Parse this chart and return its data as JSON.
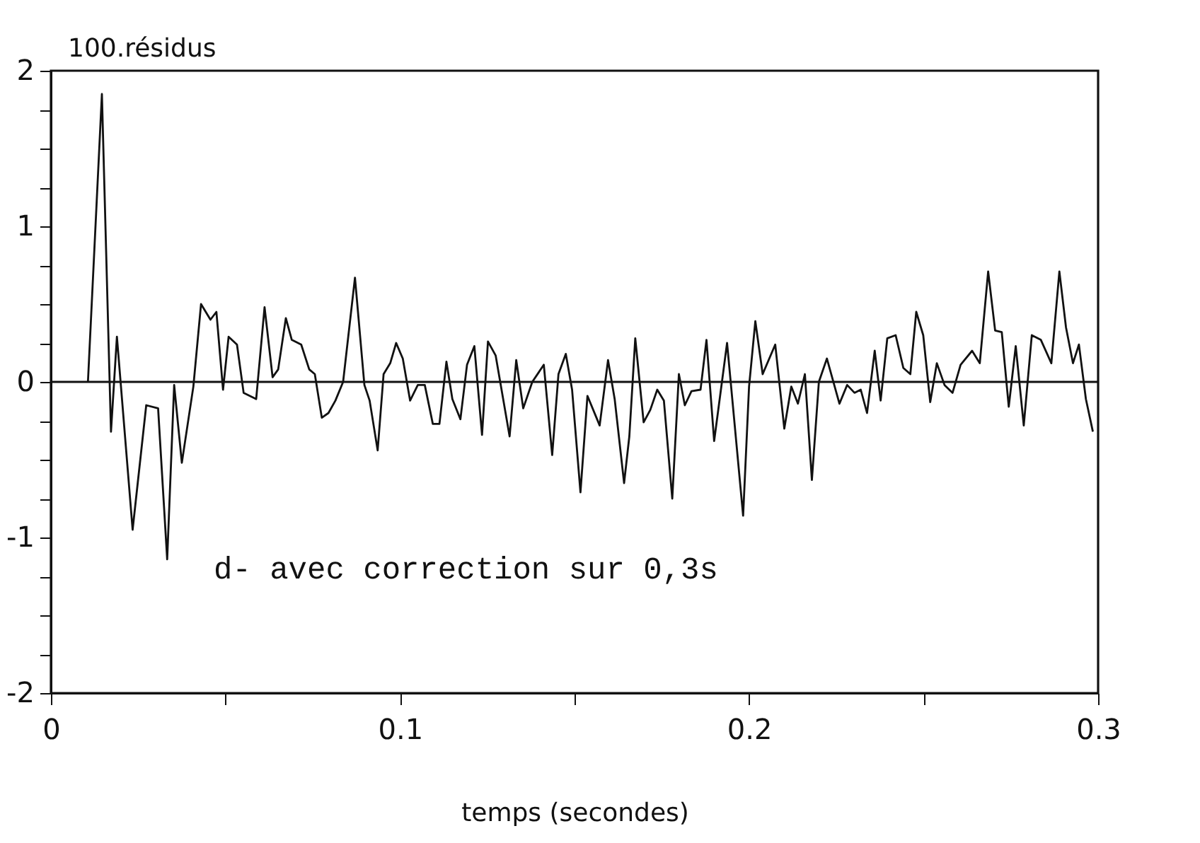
{
  "chart_data": {
    "type": "line",
    "ylabel": "100.résidus",
    "xlabel": "temps (secondes)",
    "annotations": [
      "d- avec correction sur 0,3s"
    ],
    "x": [
      0.0106,
      0.0146,
      0.0172,
      0.0189,
      0.0234,
      0.0273,
      0.0307,
      0.0333,
      0.0353,
      0.0375,
      0.0408,
      0.043,
      0.0457,
      0.0474,
      0.0493,
      0.0509,
      0.0533,
      0.0552,
      0.0588,
      0.0612,
      0.0635,
      0.0651,
      0.0673,
      0.069,
      0.0717,
      0.074,
      0.0756,
      0.0776,
      0.0795,
      0.0815,
      0.0837,
      0.0871,
      0.0898,
      0.0913,
      0.0936,
      0.0953,
      0.0972,
      0.0989,
      0.1008,
      0.1029,
      0.1051,
      0.1071,
      0.1094,
      0.1113,
      0.1133,
      0.115,
      0.1173,
      0.1192,
      0.1213,
      0.1235,
      0.1252,
      0.1274,
      0.1314,
      0.1333,
      0.1353,
      0.1379,
      0.1412,
      0.1436,
      0.1454,
      0.1475,
      0.1493,
      0.1517,
      0.1537,
      0.1572,
      0.1596,
      0.1615,
      0.1642,
      0.1657,
      0.1674,
      0.1698,
      0.1717,
      0.1737,
      0.1756,
      0.178,
      0.1799,
      0.1816,
      0.1835,
      0.1861,
      0.1878,
      0.19,
      0.1937,
      0.1983,
      0.2,
      0.2018,
      0.2039,
      0.2075,
      0.2101,
      0.2121,
      0.214,
      0.216,
      0.218,
      0.22,
      0.2223,
      0.2259,
      0.2281,
      0.2302,
      0.232,
      0.2338,
      0.236,
      0.2377,
      0.2396,
      0.242,
      0.2442,
      0.2462,
      0.2479,
      0.2499,
      0.2519,
      0.2538,
      0.256,
      0.2583,
      0.2606,
      0.2639,
      0.2661,
      0.2685,
      0.2705,
      0.2724,
      0.2744,
      0.2764,
      0.2787,
      0.281,
      0.2836,
      0.2866,
      0.2889,
      0.2908,
      0.2928,
      0.2945,
      0.2965,
      0.2985
    ],
    "series": [
      {
        "color": "#111111",
        "values": [
          0,
          1.85,
          -0.32,
          0.29,
          -0.95,
          -0.15,
          -0.17,
          -1.14,
          -0.02,
          -0.52,
          -0.03,
          0.5,
          0.4,
          0.45,
          -0.05,
          0.29,
          0.24,
          -0.07,
          -0.11,
          0.48,
          0.03,
          0.08,
          0.41,
          0.27,
          0.24,
          0.08,
          0.05,
          -0.23,
          -0.2,
          -0.12,
          0,
          0.67,
          -0.02,
          -0.12,
          -0.44,
          0.05,
          0.12,
          0.25,
          0.15,
          -0.12,
          -0.02,
          -0.02,
          -0.27,
          -0.27,
          0.13,
          -0.11,
          -0.24,
          0.11,
          0.23,
          -0.34,
          0.26,
          0.17,
          -0.35,
          0.14,
          -0.17,
          0,
          0.11,
          -0.47,
          0.05,
          0.18,
          -0.05,
          -0.71,
          -0.09,
          -0.28,
          0.14,
          -0.11,
          -0.65,
          -0.35,
          0.28,
          -0.26,
          -0.18,
          -0.05,
          -0.12,
          -0.75,
          0.05,
          -0.15,
          -0.06,
          -0.05,
          0.27,
          -0.38,
          0.25,
          -0.86,
          -0.03,
          0.39,
          0.05,
          0.24,
          -0.3,
          -0.03,
          -0.14,
          0.05,
          -0.63,
          0,
          0.15,
          -0.14,
          -0.02,
          -0.07,
          -0.05,
          -0.2,
          0.2,
          -0.12,
          0.28,
          0.3,
          0.09,
          0.05,
          0.45,
          0.3,
          -0.13,
          0.12,
          -0.02,
          -0.07,
          0.11,
          0.2,
          0.12,
          0.71,
          0.33,
          0.32,
          -0.16,
          0.23,
          -0.28,
          0.3,
          0.27,
          0.12,
          0.71,
          0.35,
          0.12,
          0.24,
          -0.11,
          -0.32
        ]
      }
    ],
    "xlim": [
      0,
      0.3
    ],
    "xticks": [
      0,
      {
        "value": 0.05,
        "label": null
      },
      {
        "value": 0.1,
        "label": "0.1"
      },
      {
        "value": 0.15,
        "label": null
      },
      {
        "value": 0.2,
        "label": "0.2"
      },
      {
        "value": 0.25,
        "label": null
      },
      {
        "value": 0.3,
        "label": "0.3"
      }
    ],
    "ylim": [
      -2,
      2
    ],
    "yticks": [
      -2,
      {
        "value": -1.75,
        "label": null
      },
      {
        "value": -1.5,
        "label": null
      },
      {
        "value": -1.25,
        "label": null
      },
      -1,
      {
        "value": -0.75,
        "label": null
      },
      {
        "value": -0.5,
        "label": null
      },
      {
        "value": -0.25,
        "label": null
      },
      0,
      {
        "value": 0.25,
        "label": null
      },
      {
        "value": 0.5,
        "label": null
      },
      {
        "value": 0.75,
        "label": null
      },
      1,
      {
        "value": 1.25,
        "label": null
      },
      {
        "value": 1.5,
        "label": null
      },
      {
        "value": 1.75,
        "label": null
      },
      2
    ],
    "ref_lines": [
      {
        "axis": "y",
        "value": 0,
        "color": "#111111"
      }
    ],
    "grid": false,
    "marker": "none",
    "line_style": "solid"
  }
}
